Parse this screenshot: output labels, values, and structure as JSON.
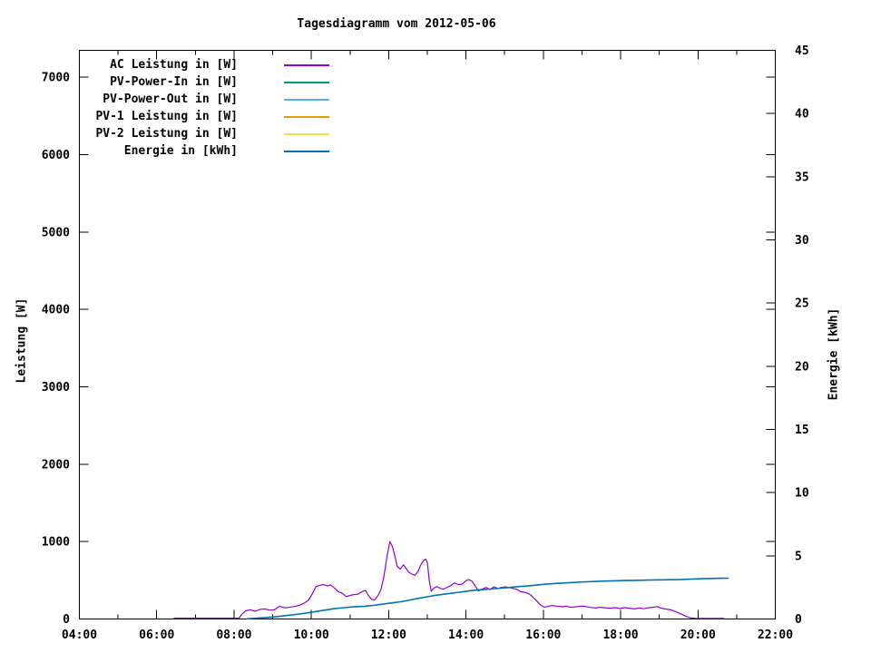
{
  "title": "Tagesdiagramm vom 2012-05-06",
  "legend": {
    "items": [
      {
        "label": "AC Leistung in [W]",
        "color": "#9400d3"
      },
      {
        "label": "PV-Power-In in [W]",
        "color": "#009e73"
      },
      {
        "label": "PV-Power-Out in [W]",
        "color": "#56b4e9"
      },
      {
        "label": "PV-1 Leistung in [W]",
        "color": "#e69f00"
      },
      {
        "label": "PV-2 Leistung in [W]",
        "color": "#f0e442"
      },
      {
        "label": "Energie in [kWh]",
        "color": "#0072b2"
      }
    ]
  },
  "chart_data": {
    "type": "line",
    "title": "Tagesdiagramm vom 2012-05-06",
    "grid": false,
    "legend_position": "top-left-inside",
    "x_axis": {
      "unit": "time",
      "range_hours": [
        4,
        22
      ],
      "major_tick_hours": [
        4,
        6,
        8,
        10,
        12,
        14,
        16,
        18,
        20,
        22
      ],
      "major_tick_labels": [
        "04:00",
        "06:00",
        "08:00",
        "10:00",
        "12:00",
        "14:00",
        "16:00",
        "18:00",
        "20:00",
        "22:00"
      ],
      "minor_tick_hours": [
        5,
        7,
        9,
        11,
        13,
        15,
        17,
        19,
        21
      ]
    },
    "y_left": {
      "title": "Leistung [W]",
      "range": [
        0,
        7347
      ],
      "tick_values": [
        0,
        1000,
        2000,
        3000,
        4000,
        5000,
        6000,
        7000
      ],
      "tick_labels": [
        "0",
        "1000",
        "2000",
        "3000",
        "4000",
        "5000",
        "6000",
        "7000"
      ]
    },
    "y_right": {
      "title": "Energie [kWh]",
      "range": [
        0,
        45
      ],
      "tick_values": [
        0,
        5,
        10,
        15,
        20,
        25,
        30,
        35,
        40,
        45
      ],
      "tick_labels": [
        "0",
        "5",
        "10",
        "15",
        "20",
        "25",
        "30",
        "35",
        "40",
        "45"
      ]
    },
    "series": [
      {
        "name": "AC Leistung in [W]",
        "color": "#9400d3",
        "axis": "left",
        "width": 1.2,
        "points": [
          [
            6.45,
            10
          ],
          [
            6.8,
            10
          ],
          [
            7.2,
            10
          ],
          [
            7.6,
            10
          ],
          [
            8.0,
            10
          ],
          [
            8.13,
            10
          ],
          [
            8.2,
            60
          ],
          [
            8.3,
            105
          ],
          [
            8.42,
            120
          ],
          [
            8.55,
            100
          ],
          [
            8.68,
            125
          ],
          [
            8.8,
            130
          ],
          [
            8.92,
            115
          ],
          [
            9.05,
            120
          ],
          [
            9.18,
            165
          ],
          [
            9.3,
            145
          ],
          [
            9.42,
            150
          ],
          [
            9.55,
            160
          ],
          [
            9.68,
            175
          ],
          [
            9.8,
            200
          ],
          [
            9.92,
            240
          ],
          [
            10.02,
            320
          ],
          [
            10.12,
            420
          ],
          [
            10.22,
            435
          ],
          [
            10.32,
            445
          ],
          [
            10.42,
            425
          ],
          [
            10.5,
            440
          ],
          [
            10.6,
            400
          ],
          [
            10.7,
            350
          ],
          [
            10.8,
            335
          ],
          [
            10.9,
            290
          ],
          [
            11.0,
            305
          ],
          [
            11.1,
            315
          ],
          [
            11.2,
            320
          ],
          [
            11.3,
            350
          ],
          [
            11.4,
            370
          ],
          [
            11.48,
            300
          ],
          [
            11.55,
            258
          ],
          [
            11.63,
            242
          ],
          [
            11.72,
            300
          ],
          [
            11.8,
            380
          ],
          [
            11.88,
            560
          ],
          [
            11.96,
            820
          ],
          [
            12.03,
            1000
          ],
          [
            12.09,
            945
          ],
          [
            12.15,
            835
          ],
          [
            12.22,
            680
          ],
          [
            12.3,
            645
          ],
          [
            12.38,
            700
          ],
          [
            12.45,
            655
          ],
          [
            12.52,
            605
          ],
          [
            12.6,
            580
          ],
          [
            12.68,
            565
          ],
          [
            12.76,
            615
          ],
          [
            12.83,
            700
          ],
          [
            12.9,
            755
          ],
          [
            12.96,
            775
          ],
          [
            13.0,
            730
          ],
          [
            13.05,
            500
          ],
          [
            13.1,
            360
          ],
          [
            13.17,
            400
          ],
          [
            13.25,
            420
          ],
          [
            13.33,
            395
          ],
          [
            13.42,
            385
          ],
          [
            13.5,
            405
          ],
          [
            13.6,
            430
          ],
          [
            13.7,
            465
          ],
          [
            13.8,
            445
          ],
          [
            13.9,
            450
          ],
          [
            14.0,
            495
          ],
          [
            14.07,
            510
          ],
          [
            14.15,
            490
          ],
          [
            14.22,
            440
          ],
          [
            14.32,
            362
          ],
          [
            14.42,
            385
          ],
          [
            14.52,
            408
          ],
          [
            14.62,
            378
          ],
          [
            14.72,
            415
          ],
          [
            14.82,
            395
          ],
          [
            14.92,
            408
          ],
          [
            15.02,
            415
          ],
          [
            15.12,
            405
          ],
          [
            15.22,
            395
          ],
          [
            15.32,
            382
          ],
          [
            15.42,
            352
          ],
          [
            15.52,
            345
          ],
          [
            15.62,
            328
          ],
          [
            15.72,
            288
          ],
          [
            15.82,
            238
          ],
          [
            15.92,
            185
          ],
          [
            16.02,
            152
          ],
          [
            16.12,
            162
          ],
          [
            16.22,
            175
          ],
          [
            16.35,
            166
          ],
          [
            16.48,
            158
          ],
          [
            16.6,
            166
          ],
          [
            16.72,
            150
          ],
          [
            16.85,
            158
          ],
          [
            16.98,
            166
          ],
          [
            17.1,
            160
          ],
          [
            17.22,
            150
          ],
          [
            17.35,
            142
          ],
          [
            17.48,
            152
          ],
          [
            17.6,
            145
          ],
          [
            17.72,
            138
          ],
          [
            17.85,
            148
          ],
          [
            17.98,
            136
          ],
          [
            18.1,
            146
          ],
          [
            18.22,
            140
          ],
          [
            18.35,
            130
          ],
          [
            18.48,
            142
          ],
          [
            18.6,
            132
          ],
          [
            18.72,
            145
          ],
          [
            18.85,
            152
          ],
          [
            18.95,
            160
          ],
          [
            19.05,
            140
          ],
          [
            19.18,
            128
          ],
          [
            19.3,
            118
          ],
          [
            19.42,
            95
          ],
          [
            19.55,
            68
          ],
          [
            19.68,
            38
          ],
          [
            19.8,
            15
          ],
          [
            19.92,
            8
          ],
          [
            20.1,
            8
          ],
          [
            20.4,
            8
          ],
          [
            20.67,
            8
          ]
        ]
      },
      {
        "name": "PV-Power-In in [W]",
        "color": "#009e73",
        "axis": "left",
        "width": 1.2,
        "points": []
      },
      {
        "name": "PV-Power-Out in [W]",
        "color": "#56b4e9",
        "axis": "left",
        "width": 1.2,
        "points": []
      },
      {
        "name": "PV-1 Leistung in [W]",
        "color": "#e69f00",
        "axis": "left",
        "width": 1.2,
        "points": []
      },
      {
        "name": "PV-2 Leistung in [W]",
        "color": "#f0e442",
        "axis": "left",
        "width": 1.2,
        "points": []
      },
      {
        "name": "Energie in [kWh]",
        "color": "#0072b2",
        "axis": "right",
        "width": 1.6,
        "points": [
          [
            8.35,
            0.02
          ],
          [
            8.6,
            0.07
          ],
          [
            8.85,
            0.12
          ],
          [
            9.1,
            0.19
          ],
          [
            9.35,
            0.27
          ],
          [
            9.6,
            0.36
          ],
          [
            9.85,
            0.46
          ],
          [
            10.1,
            0.58
          ],
          [
            10.35,
            0.7
          ],
          [
            10.6,
            0.82
          ],
          [
            10.85,
            0.9
          ],
          [
            11.1,
            0.96
          ],
          [
            11.35,
            1.0
          ],
          [
            11.6,
            1.08
          ],
          [
            11.85,
            1.18
          ],
          [
            12.1,
            1.28
          ],
          [
            12.3,
            1.36
          ],
          [
            12.5,
            1.47
          ],
          [
            12.74,
            1.62
          ],
          [
            13.0,
            1.76
          ],
          [
            13.21,
            1.87
          ],
          [
            13.45,
            1.97
          ],
          [
            13.68,
            2.06
          ],
          [
            13.95,
            2.17
          ],
          [
            14.15,
            2.25
          ],
          [
            14.4,
            2.32
          ],
          [
            14.62,
            2.37
          ],
          [
            14.9,
            2.44
          ],
          [
            15.1,
            2.49
          ],
          [
            15.35,
            2.56
          ],
          [
            15.63,
            2.63
          ],
          [
            15.85,
            2.7
          ],
          [
            16.1,
            2.77
          ],
          [
            16.35,
            2.82
          ],
          [
            16.6,
            2.86
          ],
          [
            16.85,
            2.9
          ],
          [
            17.1,
            2.94
          ],
          [
            17.35,
            2.97
          ],
          [
            17.6,
            3.0
          ],
          [
            17.85,
            3.02
          ],
          [
            18.1,
            3.04
          ],
          [
            18.35,
            3.06
          ],
          [
            18.6,
            3.07
          ],
          [
            18.85,
            3.09
          ],
          [
            19.1,
            3.1
          ],
          [
            19.35,
            3.11
          ],
          [
            19.6,
            3.13
          ],
          [
            19.85,
            3.16
          ],
          [
            20.1,
            3.19
          ],
          [
            20.35,
            3.21
          ],
          [
            20.6,
            3.22
          ],
          [
            20.78,
            3.23
          ]
        ]
      }
    ]
  }
}
